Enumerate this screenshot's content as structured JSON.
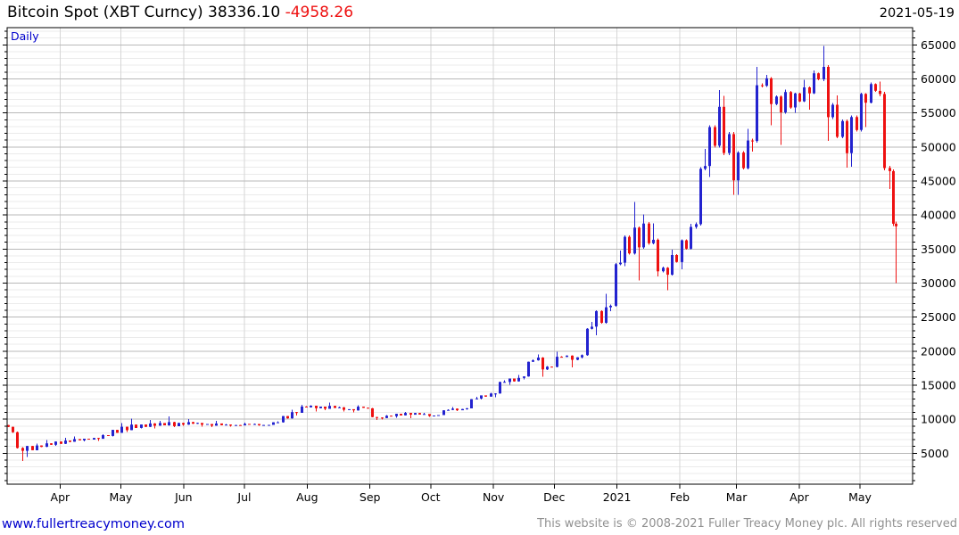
{
  "header": {
    "instrument": "Bitcoin Spot (XBT Curncy)",
    "price": "38336.10",
    "change": "-4958.26",
    "date": "2021-05-19"
  },
  "chart": {
    "frequency_label": "Daily",
    "colors": {
      "up": "#2323cf",
      "down": "#ee1111",
      "major_grid": "#b9b9b9",
      "minor_grid": "#ebebeb",
      "month_grid": "#d6d6d6",
      "axis": "#000000",
      "label_blue": "#0000cc"
    }
  },
  "chart_data": {
    "type": "candlestick",
    "title": "Bitcoin Spot (XBT Curncy)",
    "frequency": "Daily",
    "last_price": 38336.1,
    "last_change": -4958.26,
    "as_of_date": "2021-05-19",
    "x_unit": "days since 2020-03-01",
    "x_ticks": [
      {
        "label": "Apr",
        "day": 31
      },
      {
        "label": "May",
        "day": 61
      },
      {
        "label": "Jun",
        "day": 92
      },
      {
        "label": "Jul",
        "day": 122
      },
      {
        "label": "Aug",
        "day": 153
      },
      {
        "label": "Sep",
        "day": 184
      },
      {
        "label": "Oct",
        "day": 214
      },
      {
        "label": "Nov",
        "day": 245
      },
      {
        "label": "Dec",
        "day": 275
      },
      {
        "label": "2021",
        "day": 306
      },
      {
        "label": "Feb",
        "day": 337
      },
      {
        "label": "Mar",
        "day": 365
      },
      {
        "label": "Apr",
        "day": 396
      },
      {
        "label": "May",
        "day": 426
      }
    ],
    "ylim": [
      0,
      67500
    ],
    "y_tick_labels": [
      5000,
      10000,
      15000,
      20000,
      25000,
      30000,
      35000,
      40000,
      45000,
      50000,
      55000,
      60000,
      65000
    ],
    "y_major_step": 5000,
    "y_minor_step": 1000,
    "grid": true,
    "legend_position": "none",
    "series_note": "weekly OHLC values read off the daily chart; [day, open, high, low, close]",
    "ohlc": [
      [
        8,
        9150,
        9180,
        8000,
        8100
      ],
      [
        13,
        8100,
        8180,
        3850,
        5360
      ],
      [
        20,
        5360,
        6450,
        4450,
        6150
      ],
      [
        27,
        6150,
        6950,
        5870,
        6250
      ],
      [
        34,
        6250,
        7300,
        6100,
        6870
      ],
      [
        41,
        6870,
        7470,
        6600,
        6910
      ],
      [
        48,
        6910,
        7290,
        6750,
        7250
      ],
      [
        55,
        7250,
        7780,
        6780,
        7550
      ],
      [
        62,
        7550,
        9460,
        7450,
        8900
      ],
      [
        69,
        8900,
        10070,
        8100,
        8720
      ],
      [
        76,
        8720,
        9900,
        8630,
        9380
      ],
      [
        83,
        9380,
        9750,
        8630,
        9100
      ],
      [
        90,
        9100,
        10440,
        8830,
        9450
      ],
      [
        97,
        9450,
        9990,
        9070,
        9340
      ],
      [
        104,
        9340,
        9480,
        8910,
        9300
      ],
      [
        111,
        9300,
        9750,
        8870,
        9120
      ],
      [
        118,
        9120,
        9320,
        8940,
        9140
      ],
      [
        125,
        9140,
        9470,
        9050,
        9270
      ],
      [
        132,
        9270,
        9350,
        9020,
        9160
      ],
      [
        139,
        9160,
        9680,
        9110,
        9550
      ],
      [
        146,
        9550,
        11420,
        9520,
        11050
      ],
      [
        153,
        11050,
        12120,
        10560,
        11750
      ],
      [
        160,
        11750,
        12050,
        11130,
        11850
      ],
      [
        167,
        11850,
        12470,
        11350,
        11650
      ],
      [
        174,
        11650,
        11830,
        11120,
        11470
      ],
      [
        181,
        11470,
        12070,
        10990,
        11680
      ],
      [
        188,
        11680,
        11720,
        9900,
        10250
      ],
      [
        195,
        10250,
        10590,
        9980,
        10450
      ],
      [
        202,
        10450,
        11100,
        10220,
        10920
      ],
      [
        209,
        10920,
        10950,
        10150,
        10690
      ],
      [
        216,
        10690,
        10920,
        10380,
        10550
      ],
      [
        223,
        10550,
        11480,
        10520,
        11370
      ],
      [
        230,
        11370,
        11820,
        11180,
        11500
      ],
      [
        237,
        11500,
        13280,
        11400,
        13050
      ],
      [
        244,
        13050,
        13860,
        12890,
        13780
      ],
      [
        251,
        13780,
        15750,
        13200,
        15480
      ],
      [
        258,
        15480,
        16480,
        15080,
        16070
      ],
      [
        265,
        16070,
        18800,
        15850,
        18650
      ],
      [
        272,
        18650,
        19500,
        16250,
        17720
      ],
      [
        279,
        17720,
        19900,
        17600,
        19150
      ],
      [
        287,
        19150,
        19420,
        17650,
        19100
      ],
      [
        294,
        19100,
        24300,
        18900,
        23600
      ],
      [
        301,
        23600,
        28400,
        22350,
        26450
      ],
      [
        308,
        26450,
        34800,
        25900,
        33000
      ],
      [
        315,
        33000,
        41950,
        32500,
        38150
      ],
      [
        322,
        38150,
        40100,
        30400,
        35850
      ],
      [
        329,
        35850,
        38800,
        31000,
        32250
      ],
      [
        336,
        32250,
        34900,
        28950,
        33100
      ],
      [
        343,
        33100,
        38700,
        32000,
        38250
      ],
      [
        350,
        38250,
        49700,
        37990,
        47200
      ],
      [
        357,
        47200,
        58350,
        45570,
        55900
      ],
      [
        364,
        55900,
        57500,
        43000,
        45100
      ],
      [
        371,
        45100,
        52650,
        43000,
        50950
      ],
      [
        378,
        50950,
        61800,
        49300,
        59000
      ],
      [
        385,
        59000,
        60600,
        53200,
        57400
      ],
      [
        392,
        57400,
        58400,
        50300,
        55800
      ],
      [
        399,
        55800,
        59900,
        55000,
        58750
      ],
      [
        406,
        58750,
        61250,
        55450,
        59950
      ],
      [
        413,
        59950,
        64850,
        50900,
        56200
      ],
      [
        420,
        56200,
        57600,
        46950,
        49100
      ],
      [
        427,
        49100,
        58000,
        47100,
        57800
      ],
      [
        434,
        57800,
        59500,
        52900,
        58250
      ],
      [
        441,
        58250,
        59600,
        43800,
        46450
      ],
      [
        444,
        46450,
        46700,
        30000,
        38336
      ]
    ]
  },
  "footer": {
    "site_link": "www.fullertreacymoney.com",
    "copyright": "This website is © 2008-2021 Fuller Treacy Money plc. All rights reserved"
  }
}
